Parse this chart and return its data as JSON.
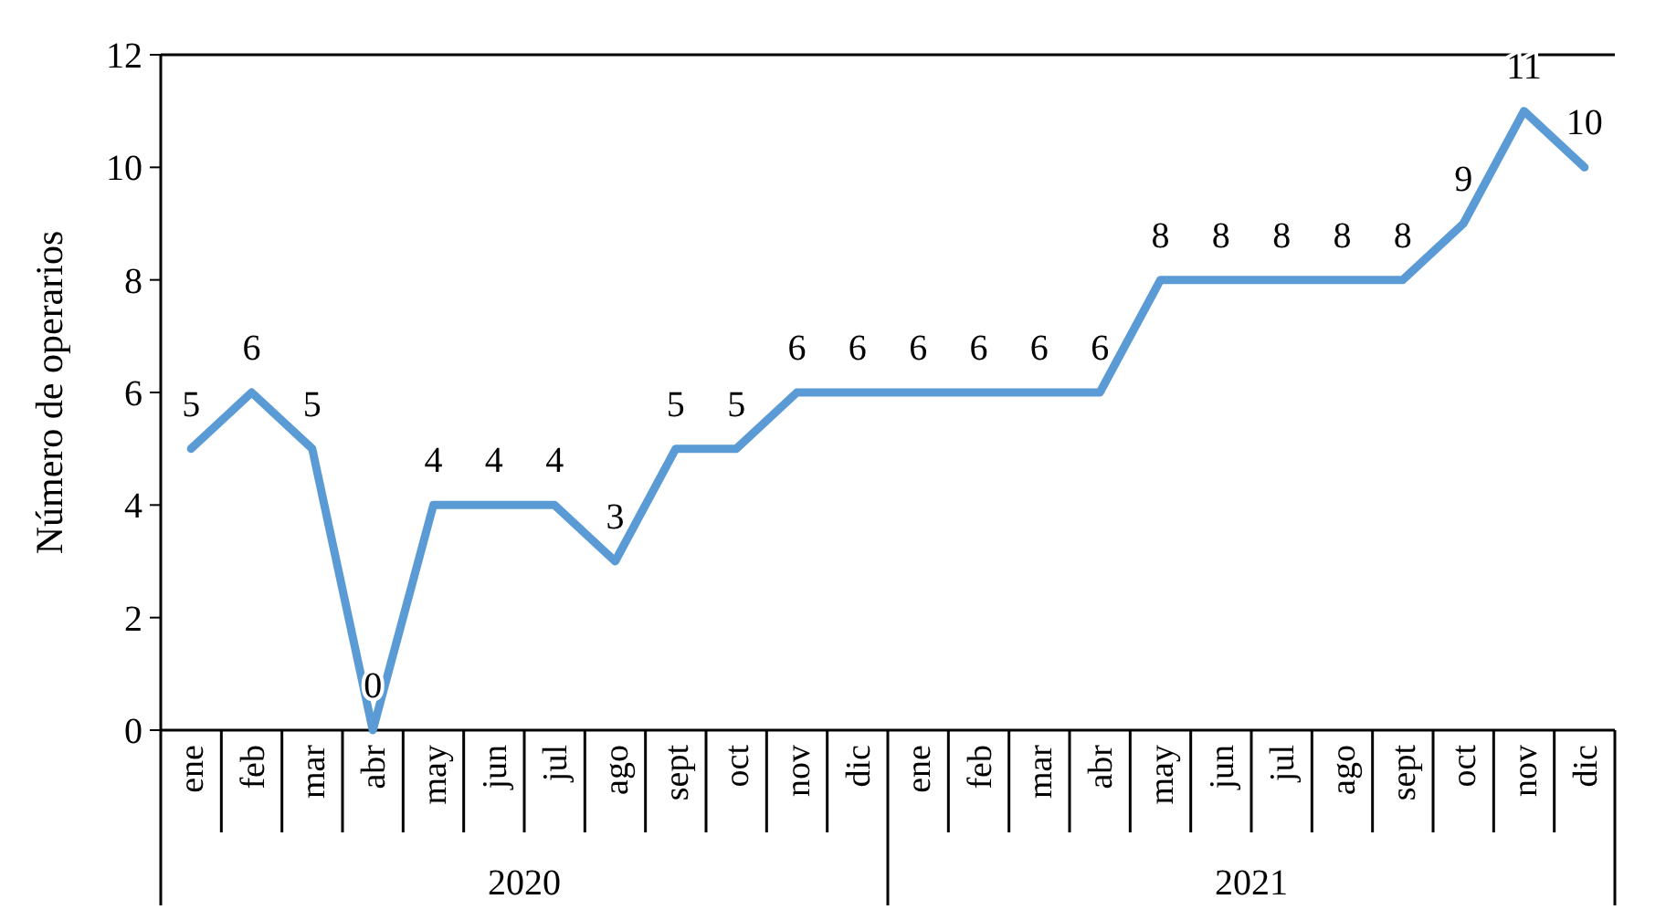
{
  "chart_data": {
    "type": "line",
    "ylabel": "Número de operarios",
    "categories": [
      "ene",
      "feb",
      "mar",
      "abr",
      "may",
      "jun",
      "jul",
      "ago",
      "sept",
      "oct",
      "nov",
      "dic",
      "ene",
      "feb",
      "mar",
      "abr",
      "may",
      "jun",
      "jul",
      "ago",
      "sept",
      "oct",
      "nov",
      "dic"
    ],
    "series": [
      {
        "color": "#5b9bd5",
        "values": [
          5,
          6,
          5,
          0,
          4,
          4,
          4,
          3,
          5,
          5,
          6,
          6,
          6,
          6,
          6,
          6,
          8,
          8,
          8,
          8,
          8,
          9,
          11,
          10
        ]
      }
    ],
    "ylim": [
      0,
      12
    ],
    "yticks": [
      0,
      2,
      4,
      6,
      8,
      10,
      12
    ],
    "data_labels": true,
    "grid": false,
    "marker": "none",
    "line_style": "solid",
    "annotations": [
      "2020",
      "2021"
    ]
  }
}
